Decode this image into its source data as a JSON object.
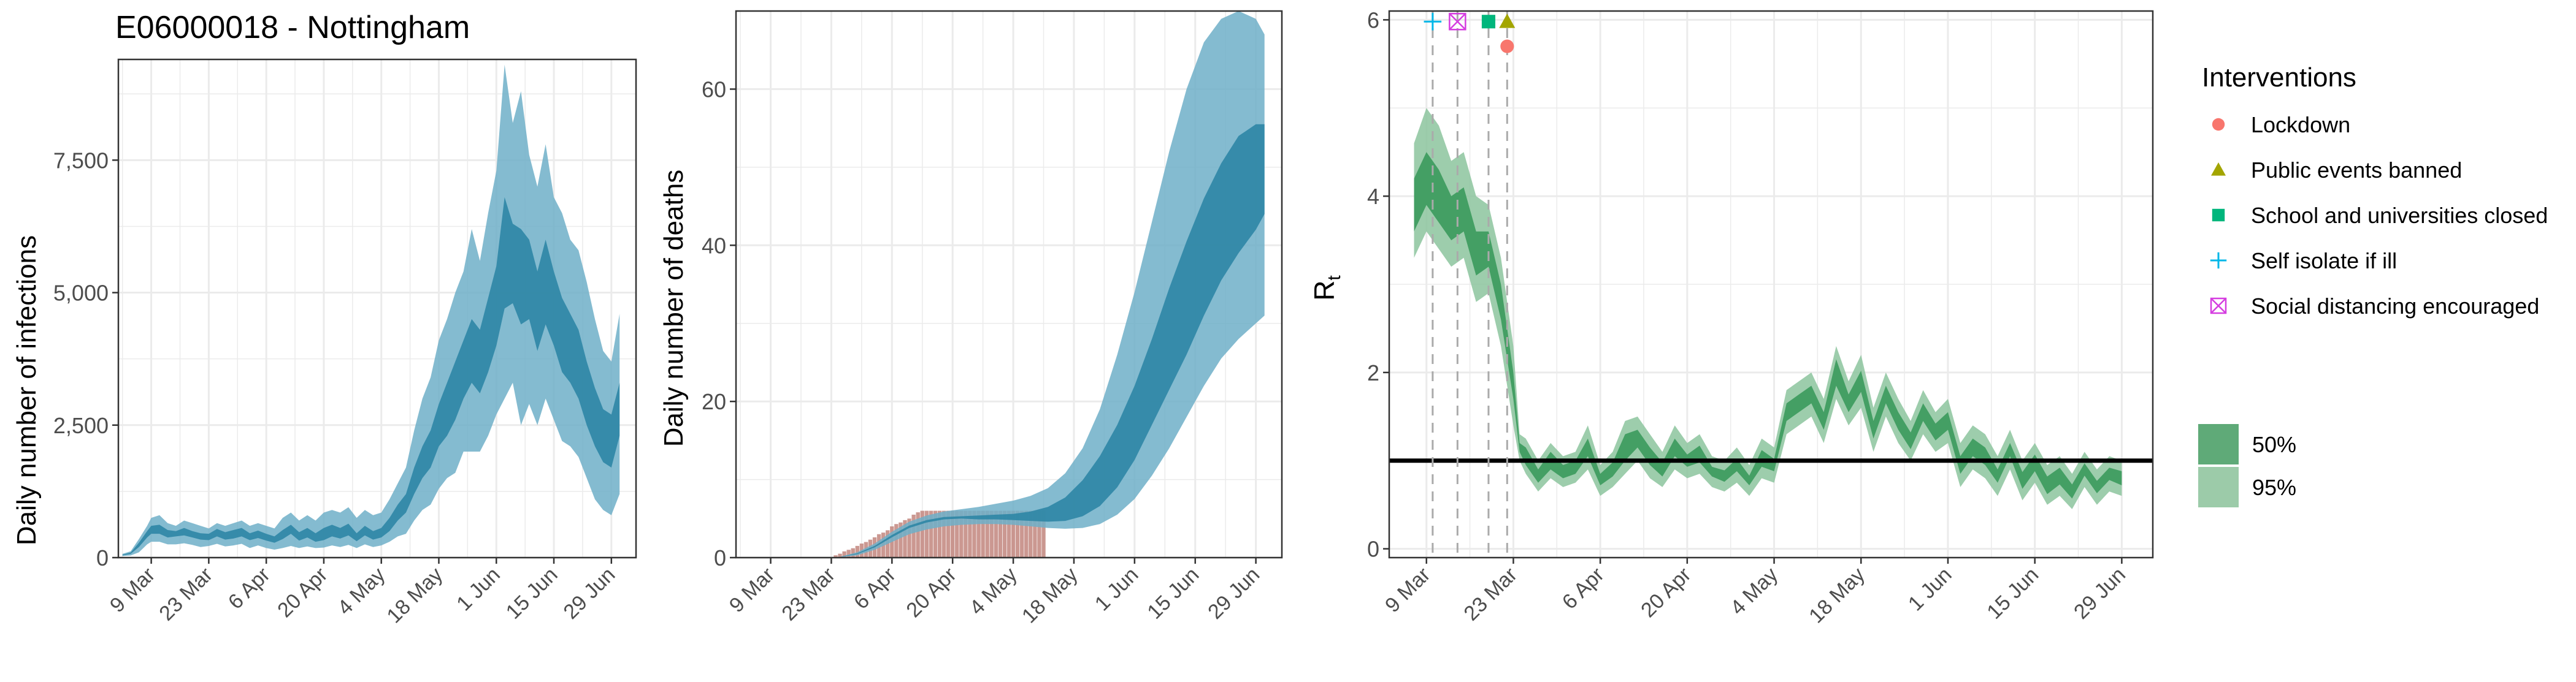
{
  "figure": {
    "title": "E06000018 - Nottingham",
    "colors": {
      "band_blue": "#6FAFC8",
      "core_blue": "#2E86A5",
      "death_bar": "#C2867E",
      "band_green": "#8CC49E",
      "core_green": "#3B9A5C",
      "grid": "#EBEBEB",
      "axis_text": "#4D4D4D",
      "guide_line": "#AAAAAA"
    }
  },
  "chart_data": [
    {
      "type": "area",
      "panel": "infections",
      "ylabel": "Daily number of infections",
      "ylim": [
        0,
        9400
      ],
      "yticks": [
        0,
        2500,
        5000,
        7500
      ],
      "ytick_labels": [
        "0",
        "2,500",
        "5,000",
        "7,500"
      ],
      "xticks": [
        "9 Mar",
        "23 Mar",
        "6 Apr",
        "20 Apr",
        "4 May",
        "18 May",
        "1 Jun",
        "15 Jun",
        "29 Jun"
      ],
      "xtick_days": [
        0,
        14,
        28,
        42,
        56,
        70,
        84,
        98,
        112
      ],
      "xlim": [
        -8,
        118
      ],
      "grid": true,
      "days": [
        -7,
        -5,
        -3,
        -1,
        0,
        2,
        4,
        6,
        8,
        10,
        12,
        14,
        16,
        18,
        20,
        22,
        24,
        26,
        28,
        30,
        32,
        34,
        36,
        38,
        40,
        42,
        44,
        46,
        48,
        50,
        52,
        54,
        56,
        58,
        60,
        62,
        64,
        66,
        68,
        70,
        72,
        74,
        76,
        78,
        80,
        82,
        84,
        86,
        88,
        90,
        92,
        94,
        96,
        98,
        100,
        102,
        104,
        106,
        108,
        110,
        112,
        114
      ],
      "lower_95": [
        30,
        40,
        100,
        250,
        300,
        300,
        250,
        250,
        270,
        240,
        200,
        220,
        260,
        210,
        230,
        260,
        180,
        230,
        180,
        150,
        180,
        220,
        180,
        210,
        180,
        190,
        230,
        200,
        240,
        180,
        250,
        200,
        230,
        300,
        400,
        450,
        700,
        900,
        1000,
        1300,
        1500,
        1600,
        2000,
        2000,
        2000,
        2300,
        2700,
        3000,
        3300,
        2500,
        2900,
        2500,
        3000,
        2600,
        2200,
        2100,
        1900,
        1500,
        1100,
        900,
        800,
        1200
      ],
      "upper_95": [
        70,
        120,
        350,
        600,
        750,
        800,
        650,
        600,
        700,
        650,
        600,
        550,
        650,
        600,
        650,
        700,
        600,
        650,
        600,
        550,
        750,
        850,
        700,
        800,
        700,
        850,
        900,
        850,
        950,
        750,
        900,
        800,
        850,
        1100,
        1400,
        1700,
        2400,
        3000,
        3400,
        4100,
        4500,
        5000,
        5400,
        6200,
        5600,
        6500,
        7300,
        9300,
        8200,
        8800,
        7600,
        7000,
        7800,
        6800,
        6500,
        6000,
        5800,
        5200,
        4500,
        3900,
        3700,
        4600
      ],
      "lower_50": [
        40,
        70,
        200,
        380,
        450,
        450,
        380,
        400,
        420,
        380,
        340,
        330,
        400,
        340,
        360,
        400,
        330,
        370,
        320,
        280,
        350,
        450,
        320,
        380,
        300,
        330,
        400,
        360,
        420,
        310,
        420,
        340,
        380,
        500,
        700,
        850,
        1200,
        1500,
        1700,
        2100,
        2300,
        2600,
        3000,
        3300,
        3100,
        3500,
        4000,
        4700,
        4800,
        4400,
        4500,
        3900,
        4400,
        4000,
        3500,
        3300,
        3000,
        2500,
        2100,
        1800,
        1700,
        2300
      ],
      "upper_50": [
        55,
        95,
        280,
        500,
        600,
        620,
        520,
        500,
        560,
        500,
        460,
        450,
        540,
        480,
        520,
        560,
        460,
        510,
        450,
        400,
        520,
        620,
        480,
        560,
        460,
        560,
        620,
        560,
        640,
        460,
        600,
        500,
        560,
        750,
        1000,
        1200,
        1700,
        2100,
        2400,
        2900,
        3300,
        3700,
        4100,
        4500,
        4300,
        4900,
        5500,
        6800,
        6300,
        6200,
        6000,
        5400,
        6000,
        5400,
        4900,
        4600,
        4300,
        3700,
        3200,
        2800,
        2700,
        3300
      ]
    },
    {
      "type": "area",
      "panel": "deaths",
      "ylabel": "Daily number of deaths",
      "ylim": [
        0,
        70
      ],
      "yticks": [
        0,
        20,
        40,
        60
      ],
      "ytick_labels": [
        "0",
        "20",
        "40",
        "60"
      ],
      "xticks": [
        "9 Mar",
        "23 Mar",
        "6 Apr",
        "20 Apr",
        "4 May",
        "18 May",
        "1 Jun",
        "15 Jun",
        "29 Jun"
      ],
      "xtick_days": [
        0,
        14,
        28,
        42,
        56,
        70,
        84,
        98,
        112
      ],
      "xlim": [
        -8,
        118
      ],
      "grid": true,
      "days": [
        0,
        4,
        8,
        12,
        16,
        20,
        24,
        28,
        32,
        36,
        40,
        44,
        48,
        52,
        56,
        60,
        64,
        68,
        72,
        76,
        80,
        84,
        88,
        92,
        96,
        100,
        104,
        108,
        112,
        114
      ],
      "lower_95": [
        0,
        0,
        0,
        0,
        0.05,
        0.3,
        1.0,
        2.0,
        3.0,
        3.6,
        4.0,
        4.2,
        4.3,
        4.3,
        4.2,
        4.0,
        3.8,
        3.7,
        3.8,
        4.3,
        5.5,
        7.5,
        10.5,
        14.0,
        18.0,
        22.0,
        25.5,
        28.0,
        30.0,
        31.0
      ],
      "upper_95": [
        0,
        0,
        0,
        0,
        0.1,
        0.7,
        1.8,
        3.3,
        4.6,
        5.4,
        5.9,
        6.2,
        6.5,
        6.9,
        7.3,
        7.9,
        8.9,
        10.8,
        14.0,
        19.0,
        26.0,
        34.0,
        43.0,
        52.0,
        60.0,
        66.0,
        69.0,
        70.0,
        69.0,
        67.0
      ],
      "lower_50": [
        0,
        0,
        0,
        0,
        0.07,
        0.45,
        1.3,
        2.6,
        3.8,
        4.5,
        4.9,
        5.0,
        4.9,
        4.9,
        4.8,
        4.7,
        4.6,
        4.7,
        5.3,
        6.6,
        9.0,
        12.5,
        17.0,
        21.5,
        26.0,
        31.0,
        35.5,
        39.0,
        42.0,
        44.0
      ],
      "upper_50": [
        0,
        0,
        0,
        0,
        0.08,
        0.55,
        1.5,
        2.9,
        4.1,
        4.8,
        5.2,
        5.3,
        5.4,
        5.5,
        5.6,
        5.9,
        6.5,
        7.7,
        9.9,
        13.0,
        17.0,
        22.0,
        28.0,
        34.5,
        40.5,
        46.0,
        50.5,
        54.0,
        55.5,
        55.5
      ],
      "bars": {
        "days": [
          15,
          16,
          17,
          18,
          19,
          20,
          21,
          22,
          23,
          24,
          25,
          26,
          27,
          28,
          29,
          30,
          31,
          32,
          33,
          34,
          35,
          36,
          37,
          38,
          39,
          40,
          41,
          42,
          43,
          44,
          45,
          46,
          47,
          48,
          49,
          50,
          51,
          52,
          53,
          54,
          55,
          56,
          57,
          58,
          59,
          60,
          61,
          62,
          63
        ],
        "values": [
          0.3,
          0.5,
          0.8,
          1.0,
          1.2,
          1.5,
          1.8,
          2.0,
          2.3,
          2.6,
          3.0,
          3.2,
          3.5,
          4.0,
          4.3,
          4.5,
          4.8,
          5.0,
          5.5,
          5.8,
          6.0,
          6.0,
          6.0,
          6.0,
          6.0,
          6.0,
          6.0,
          6.0,
          6.0,
          6.0,
          6.0,
          6.0,
          6.0,
          6.0,
          6.0,
          6.0,
          6.0,
          6.0,
          6.0,
          6.0,
          6.0,
          6.0,
          6.0,
          6.0,
          6.0,
          6.0,
          6.0,
          6.0,
          6.0
        ]
      }
    },
    {
      "type": "area",
      "panel": "rt",
      "ylabel": "Rt",
      "ylim": [
        -0.1,
        6.1
      ],
      "yticks": [
        0,
        2,
        4,
        6
      ],
      "ytick_labels": [
        "0",
        "2",
        "4",
        "6"
      ],
      "xticks": [
        "9 Mar",
        "23 Mar",
        "6 Apr",
        "20 Apr",
        "4 May",
        "18 May",
        "1 Jun",
        "15 Jun",
        "29 Jun"
      ],
      "xtick_days": [
        0,
        14,
        28,
        42,
        56,
        70,
        84,
        98,
        112
      ],
      "xlim": [
        -6,
        117
      ],
      "grid": true,
      "reference_line": 1,
      "days": [
        -2,
        0,
        2,
        4,
        6,
        8,
        10,
        12,
        14,
        15,
        16,
        18,
        20,
        22,
        24,
        26,
        28,
        30,
        32,
        34,
        36,
        38,
        40,
        42,
        44,
        46,
        48,
        50,
        52,
        54,
        56,
        58,
        60,
        62,
        64,
        66,
        68,
        70,
        72,
        74,
        76,
        78,
        80,
        82,
        84,
        86,
        88,
        90,
        92,
        94,
        96,
        98,
        100,
        102,
        104,
        106,
        108,
        110,
        112
      ],
      "lower_95": [
        3.3,
        3.6,
        3.4,
        3.2,
        3.3,
        2.8,
        2.9,
        2.3,
        1.4,
        1.0,
        0.85,
        0.65,
        0.8,
        0.7,
        0.75,
        0.9,
        0.6,
        0.7,
        0.85,
        1.0,
        0.8,
        0.7,
        0.9,
        0.8,
        0.85,
        0.7,
        0.65,
        0.75,
        0.6,
        0.8,
        0.75,
        1.3,
        1.4,
        1.5,
        1.2,
        1.7,
        1.4,
        1.6,
        1.1,
        1.5,
        1.2,
        1.0,
        1.3,
        1.1,
        1.2,
        0.7,
        0.9,
        0.8,
        0.6,
        0.9,
        0.55,
        0.75,
        0.5,
        0.6,
        0.45,
        0.7,
        0.5,
        0.65,
        0.6
      ],
      "upper_95": [
        4.6,
        5.0,
        4.8,
        4.4,
        4.5,
        4.0,
        3.9,
        3.3,
        2.3,
        1.3,
        1.25,
        1.0,
        1.2,
        1.05,
        1.1,
        1.4,
        0.95,
        1.1,
        1.45,
        1.5,
        1.3,
        1.1,
        1.4,
        1.2,
        1.3,
        1.05,
        1.0,
        1.15,
        0.95,
        1.25,
        1.15,
        1.8,
        1.9,
        2.0,
        1.7,
        2.3,
        1.9,
        2.2,
        1.6,
        2.0,
        1.7,
        1.45,
        1.8,
        1.55,
        1.7,
        1.2,
        1.4,
        1.3,
        1.05,
        1.35,
        1.0,
        1.2,
        0.95,
        1.05,
        0.85,
        1.1,
        0.9,
        1.05,
        1.0
      ],
      "lower_50": [
        3.6,
        3.9,
        3.7,
        3.5,
        3.6,
        3.1,
        3.2,
        2.6,
        1.7,
        1.1,
        0.95,
        0.75,
        0.9,
        0.8,
        0.85,
        1.05,
        0.72,
        0.82,
        1.0,
        1.15,
        0.95,
        0.82,
        1.05,
        0.93,
        0.98,
        0.82,
        0.76,
        0.88,
        0.72,
        0.93,
        0.88,
        1.45,
        1.55,
        1.65,
        1.35,
        1.85,
        1.55,
        1.78,
        1.25,
        1.65,
        1.35,
        1.13,
        1.45,
        1.23,
        1.35,
        0.85,
        1.05,
        0.95,
        0.75,
        1.05,
        0.68,
        0.88,
        0.62,
        0.73,
        0.57,
        0.83,
        0.63,
        0.78,
        0.72
      ],
      "upper_50": [
        4.2,
        4.5,
        4.3,
        4.0,
        4.1,
        3.6,
        3.6,
        3.0,
        2.0,
        1.2,
        1.15,
        0.9,
        1.1,
        0.95,
        1.0,
        1.25,
        0.85,
        0.98,
        1.3,
        1.35,
        1.15,
        0.98,
        1.25,
        1.07,
        1.17,
        0.93,
        0.89,
        1.02,
        0.83,
        1.12,
        1.02,
        1.65,
        1.75,
        1.85,
        1.55,
        2.15,
        1.75,
        2.02,
        1.45,
        1.85,
        1.55,
        1.32,
        1.65,
        1.42,
        1.55,
        1.05,
        1.25,
        1.15,
        0.9,
        1.2,
        0.87,
        1.07,
        0.82,
        0.92,
        0.73,
        0.97,
        0.77,
        0.92,
        0.88
      ],
      "interventions": [
        {
          "name": "Self isolate if ill",
          "day": 1,
          "y": 5.98,
          "shape": "plus",
          "color": "#00B7E8"
        },
        {
          "name": "Social distancing encouraged",
          "day": 5,
          "y": 5.98,
          "shape": "boxx",
          "color": "#D53EE0"
        },
        {
          "name": "School and universities closed",
          "day": 10,
          "y": 5.98,
          "shape": "square",
          "color": "#00B67C"
        },
        {
          "name": "Public events banned",
          "day": 13,
          "y": 5.98,
          "shape": "triangle",
          "color": "#A3A500"
        },
        {
          "name": "Lockdown",
          "day": 13,
          "y": 5.7,
          "shape": "circle",
          "color": "#F8766D"
        }
      ]
    }
  ],
  "legend": {
    "interventions_title": "Interventions",
    "items": [
      {
        "label": "Lockdown",
        "shape": "circle",
        "color": "#F8766D"
      },
      {
        "label": "Public events banned",
        "shape": "triangle",
        "color": "#A3A500"
      },
      {
        "label": "School and universities closed",
        "shape": "square",
        "color": "#00B67C"
      },
      {
        "label": "Self isolate if ill",
        "shape": "plus",
        "color": "#00B7E8"
      },
      {
        "label": "Social distancing encouraged",
        "shape": "boxx",
        "color": "#D53EE0"
      }
    ],
    "bands": [
      {
        "label": "50%",
        "color": "#5FAA78"
      },
      {
        "label": "95%",
        "color": "#9CCBA9"
      }
    ]
  }
}
